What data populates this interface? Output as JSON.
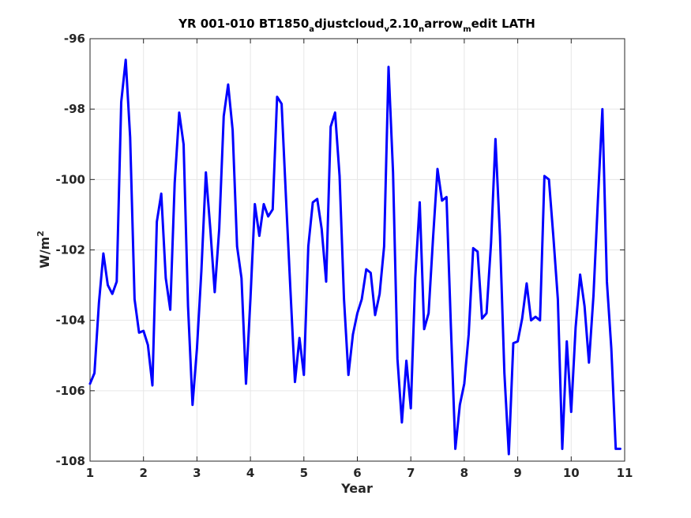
{
  "chart_data": {
    "type": "line",
    "title_parts": [
      {
        "text": "YR 001-010 BT1850",
        "sub": false
      },
      {
        "text": "a",
        "sub": true
      },
      {
        "text": "djustcloud",
        "sub": false
      },
      {
        "text": "v",
        "sub": true
      },
      {
        "text": "2.10",
        "sub": false
      },
      {
        "text": "n",
        "sub": true
      },
      {
        "text": "arrow",
        "sub": false
      },
      {
        "text": "m",
        "sub": true
      },
      {
        "text": "edit LATH",
        "sub": false
      }
    ],
    "xlabel": "Year",
    "ylabel_main": "W/m",
    "ylabel_sup": "2",
    "xlim": [
      1,
      11
    ],
    "ylim": [
      -108,
      -96
    ],
    "xticks": [
      1,
      2,
      3,
      4,
      5,
      6,
      7,
      8,
      9,
      10,
      11
    ],
    "yticks": [
      -108,
      -106,
      -104,
      -102,
      -100,
      -98,
      -96
    ],
    "xtick_labels": [
      "1",
      "2",
      "3",
      "4",
      "5",
      "6",
      "7",
      "8",
      "9",
      "10",
      "11"
    ],
    "ytick_labels": [
      "-108",
      "-106",
      "-104",
      "-102",
      "-100",
      "-98",
      "-96"
    ],
    "grid": true,
    "series": [
      {
        "color": "#0000ff",
        "x": [
          1.0,
          1.083,
          1.167,
          1.25,
          1.333,
          1.417,
          1.5,
          1.583,
          1.667,
          1.75,
          1.833,
          1.917,
          2.0,
          2.083,
          2.167,
          2.25,
          2.333,
          2.417,
          2.5,
          2.583,
          2.667,
          2.75,
          2.833,
          2.917,
          3.0,
          3.083,
          3.167,
          3.25,
          3.333,
          3.417,
          3.5,
          3.583,
          3.667,
          3.75,
          3.833,
          3.917,
          4.0,
          4.083,
          4.167,
          4.25,
          4.333,
          4.417,
          4.5,
          4.583,
          4.667,
          4.75,
          4.833,
          4.917,
          5.0,
          5.083,
          5.167,
          5.25,
          5.333,
          5.417,
          5.5,
          5.583,
          5.667,
          5.75,
          5.833,
          5.917,
          6.0,
          6.083,
          6.167,
          6.25,
          6.333,
          6.417,
          6.5,
          6.583,
          6.667,
          6.75,
          6.833,
          6.917,
          7.0,
          7.083,
          7.167,
          7.25,
          7.333,
          7.417,
          7.5,
          7.583,
          7.667,
          7.75,
          7.833,
          7.917,
          8.0,
          8.083,
          8.167,
          8.25,
          8.333,
          8.417,
          8.5,
          8.583,
          8.667,
          8.75,
          8.833,
          8.917,
          9.0,
          9.083,
          9.167,
          9.25,
          9.333,
          9.417,
          9.5,
          9.583,
          9.667,
          9.75,
          9.833,
          9.917,
          10.0,
          10.083,
          10.167,
          10.25,
          10.333,
          10.417,
          10.5,
          10.583,
          10.667,
          10.75,
          10.833,
          10.917
        ],
        "y": [
          -105.8,
          -105.5,
          -103.5,
          -102.1,
          -103.0,
          -103.25,
          -102.9,
          -97.8,
          -96.6,
          -98.8,
          -103.4,
          -104.35,
          -104.3,
          -104.7,
          -105.85,
          -101.2,
          -100.4,
          -102.8,
          -103.7,
          -100.1,
          -98.1,
          -99.0,
          -103.6,
          -106.4,
          -104.8,
          -102.6,
          -99.8,
          -101.4,
          -103.2,
          -101.4,
          -98.2,
          -97.3,
          -98.6,
          -101.9,
          -102.8,
          -105.8,
          -103.4,
          -100.7,
          -101.6,
          -100.7,
          -101.05,
          -100.85,
          -97.65,
          -97.85,
          -100.6,
          -103.2,
          -105.75,
          -104.5,
          -105.55,
          -101.9,
          -100.65,
          -100.55,
          -101.4,
          -102.9,
          -98.5,
          -98.1,
          -99.9,
          -103.4,
          -105.55,
          -104.4,
          -103.8,
          -103.4,
          -102.55,
          -102.65,
          -103.85,
          -103.25,
          -101.9,
          -96.8,
          -99.8,
          -105.1,
          -106.9,
          -105.15,
          -106.5,
          -102.8,
          -100.65,
          -104.25,
          -103.8,
          -101.65,
          -99.7,
          -100.6,
          -100.5,
          -104.2,
          -107.65,
          -106.4,
          -105.8,
          -104.4,
          -101.95,
          -102.05,
          -103.95,
          -103.8,
          -101.8,
          -98.85,
          -101.6,
          -105.5,
          -107.8,
          -104.65,
          -104.6,
          -103.95,
          -102.95,
          -104.0,
          -103.9,
          -104.0,
          -99.9,
          -100.0,
          -101.65,
          -103.4,
          -107.65,
          -104.6,
          -106.6,
          -104.2,
          -102.7,
          -103.6,
          -105.2,
          -103.3,
          -100.6,
          -98.0,
          -102.9,
          -104.8,
          -107.65,
          -107.65
        ]
      }
    ]
  }
}
